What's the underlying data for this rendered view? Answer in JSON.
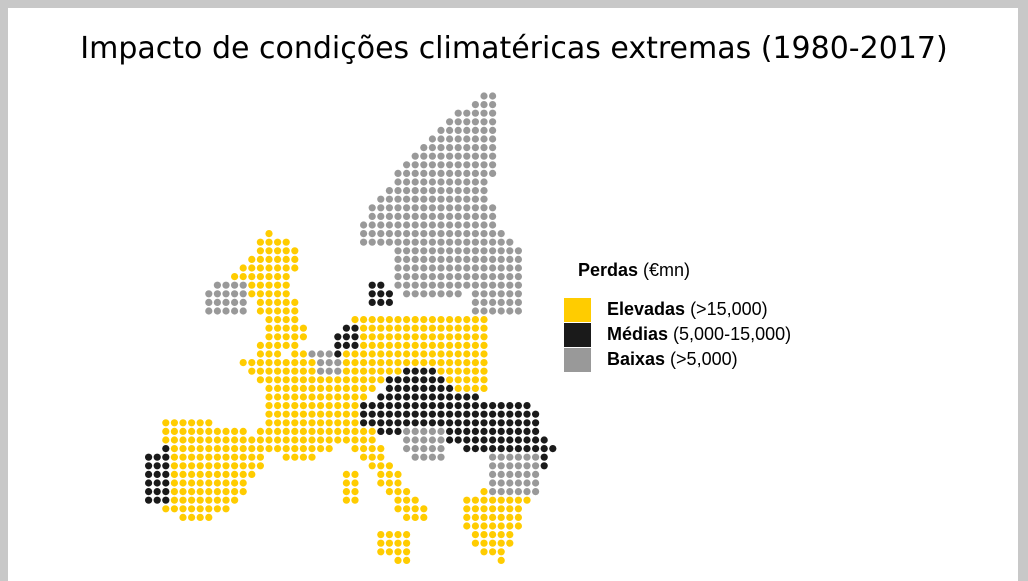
{
  "title": "Impacto de condições climatéricas extremas (1980-2017)",
  "legend": {
    "title": "Perdas",
    "unit": "(€mn)",
    "items": [
      {
        "name": "Elevadas",
        "range": "(>15,000)",
        "color": "#ffcc00"
      },
      {
        "name": "Médias",
        "range": "(5,000-15,000)",
        "color": "#1a1a1a"
      },
      {
        "name": "Baixas",
        "range": "(>5,000)",
        "color": "#999999"
      }
    ]
  }
}
